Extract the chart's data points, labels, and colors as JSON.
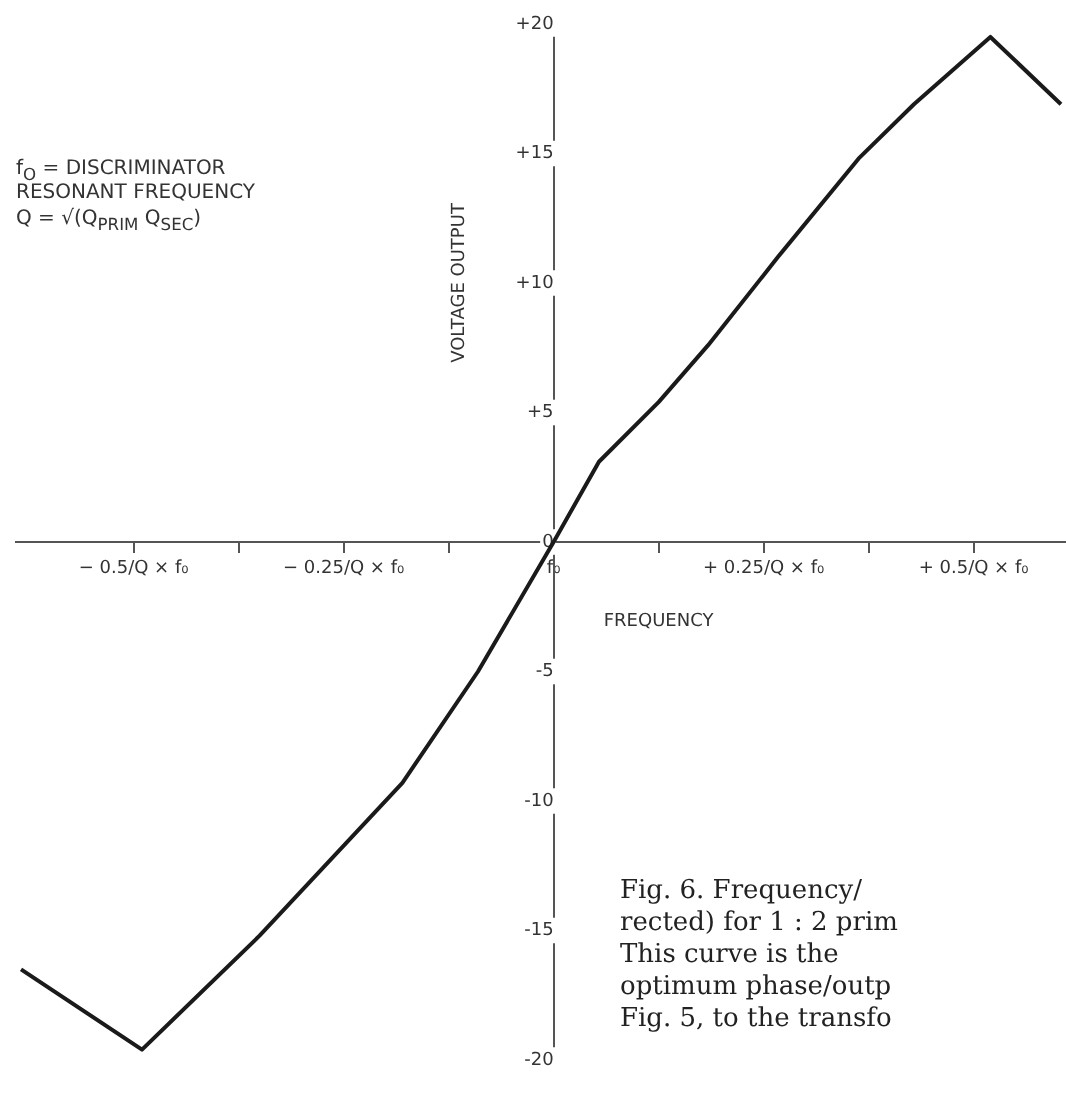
{
  "chart_data": {
    "type": "line",
    "xlabel": "FREQUENCY",
    "ylabel": "VOLTAGE OUTPUT",
    "annotations": [
      "f$_{O}$ = DISCRIMINATOR\nRESONANT FREQUENCY",
      "Q = √(Q$_{PRIM}$ Q$_{SEC}$)",
      "Fig. 6. Frequency/\nrected) for 1 : 2 prim\nThis curve is the\noptimum phase/outp\nFig. 5, to the transfo"
    ],
    "x": [
      -0.634,
      -0.49,
      -0.35,
      -0.18,
      -0.09,
      0,
      0.054,
      0.125,
      0.184,
      0.267,
      0.363,
      0.429,
      0.52,
      0.604
    ],
    "series": [
      {
        "color": "#1a1a1a",
        "values": [
          -16.5,
          -19.6,
          -15.2,
          -9.3,
          -5,
          0,
          3.1,
          5.4,
          7.6,
          11,
          14.8,
          16.9,
          19.5,
          16.9
        ]
      }
    ],
    "xlim": [
      -0.64,
      0.61
    ],
    "xticks": [
      {
        "value": -0.5,
        "label": "− 0.5/Q × f₀"
      },
      {
        "value": -0.375,
        "label": null
      },
      {
        "value": -0.25,
        "label": "− 0.25/Q × f₀"
      },
      {
        "value": -0.125,
        "label": null
      },
      {
        "value": 0,
        "label": "f₀"
      },
      {
        "value": 0.125,
        "label": null
      },
      {
        "value": 0.25,
        "label": "+ 0.25/Q × f₀"
      },
      {
        "value": 0.375,
        "label": null
      },
      {
        "value": 0.5,
        "label": "+ 0.5/Q × f₀"
      }
    ],
    "ylim": [
      -20,
      20
    ],
    "yticks": [
      {
        "value": 20,
        "label": "+20"
      },
      {
        "value": 15,
        "label": "+15"
      },
      {
        "value": 10,
        "label": "+10"
      },
      {
        "value": 5,
        "label": "+5"
      },
      0,
      -5,
      -10,
      -15,
      -20
    ],
    "legend": false,
    "marker": "none",
    "line_style": "solid"
  }
}
